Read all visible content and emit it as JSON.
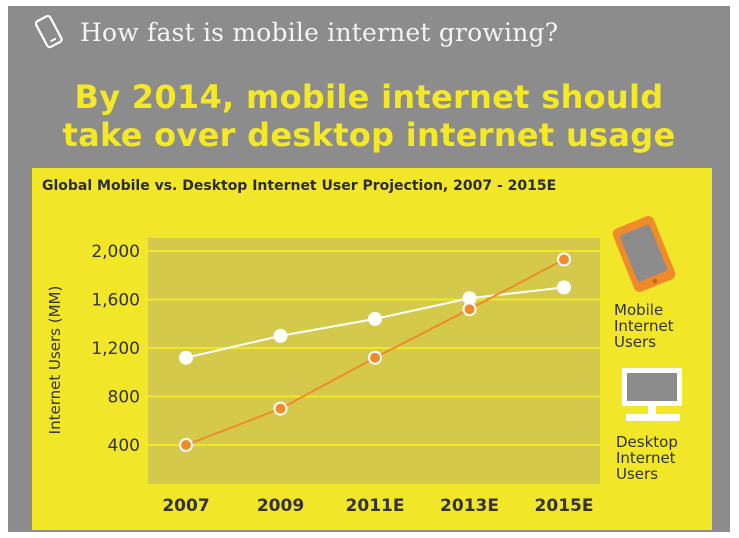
{
  "header": {
    "title": "How fast is mobile internet growing?",
    "icon": "mobile-phone-icon"
  },
  "headline": {
    "line1": "By 2014, mobile internet should",
    "line2": "take over desktop internet usage"
  },
  "colors": {
    "background": "#8c8c8c",
    "headline": "#f5e826",
    "panel": "#f2e628",
    "plot_area": "#d4c94a",
    "mobile": "#f08a2a",
    "desktop": "#ffffff"
  },
  "legend": {
    "mobile": [
      "Mobile",
      "Internet",
      "Users"
    ],
    "desktop": [
      "Desktop",
      "Internet",
      "Users"
    ],
    "mobile_icon": "smartphone-icon",
    "desktop_icon": "monitor-icon"
  },
  "chart_data": {
    "type": "line",
    "title": "Global Mobile vs. Desktop Internet User Projection, 2007 - 2015E",
    "xlabel": "",
    "ylabel": "Internet Users (MM)",
    "categories": [
      "2007",
      "2009",
      "2011E",
      "2013E",
      "2015E"
    ],
    "y_ticks": [
      "400",
      "800",
      "1,200",
      "1,600",
      "2,000"
    ],
    "ylim": [
      400,
      2000
    ],
    "grid": true,
    "legend_position": "right",
    "series": [
      {
        "name": "Mobile Internet Users",
        "values": [
          400,
          700,
          1120,
          1520,
          1930
        ]
      },
      {
        "name": "Desktop Internet Users",
        "values": [
          1120,
          1300,
          1440,
          1610,
          1700
        ]
      }
    ]
  }
}
